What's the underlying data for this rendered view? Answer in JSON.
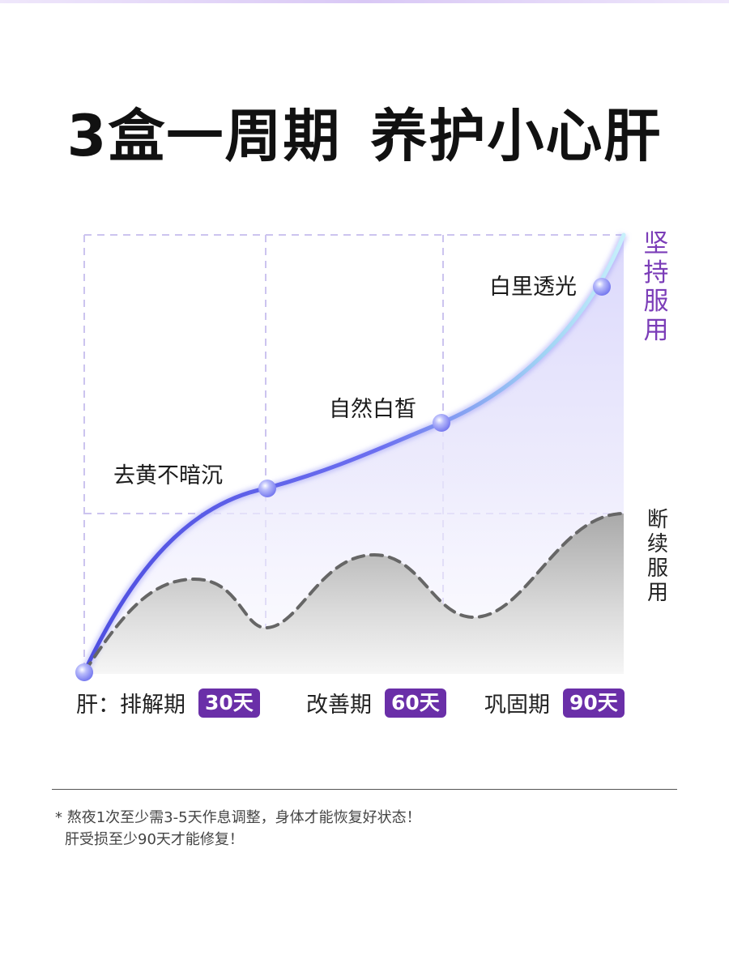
{
  "headline": {
    "part1": "3盒一周期",
    "part2": "养护小心肝"
  },
  "chart": {
    "continued_label_chars": [
      "坚",
      "持",
      "服",
      "用"
    ],
    "stopped_label_chars": [
      "断",
      "续",
      "服",
      "用"
    ],
    "points": [
      {
        "label": "去黄不暗沉"
      },
      {
        "label": "自然白皙"
      },
      {
        "label": "白里透光"
      }
    ],
    "axis_prefix": "肝：",
    "phases": [
      {
        "name": "排解期",
        "days": "30天"
      },
      {
        "name": "改善期",
        "days": "60天"
      },
      {
        "name": "巩固期",
        "days": "90天"
      }
    ],
    "colors": {
      "accent": "#6a2fa8",
      "curve": "#5a5ee8",
      "dashed": "#666666"
    }
  },
  "notes": {
    "line1": "* 熬夜1次至少需3-5天作息调整，身体才能恢复好状态！",
    "line2": "肝受损至少90天才能修复！"
  }
}
